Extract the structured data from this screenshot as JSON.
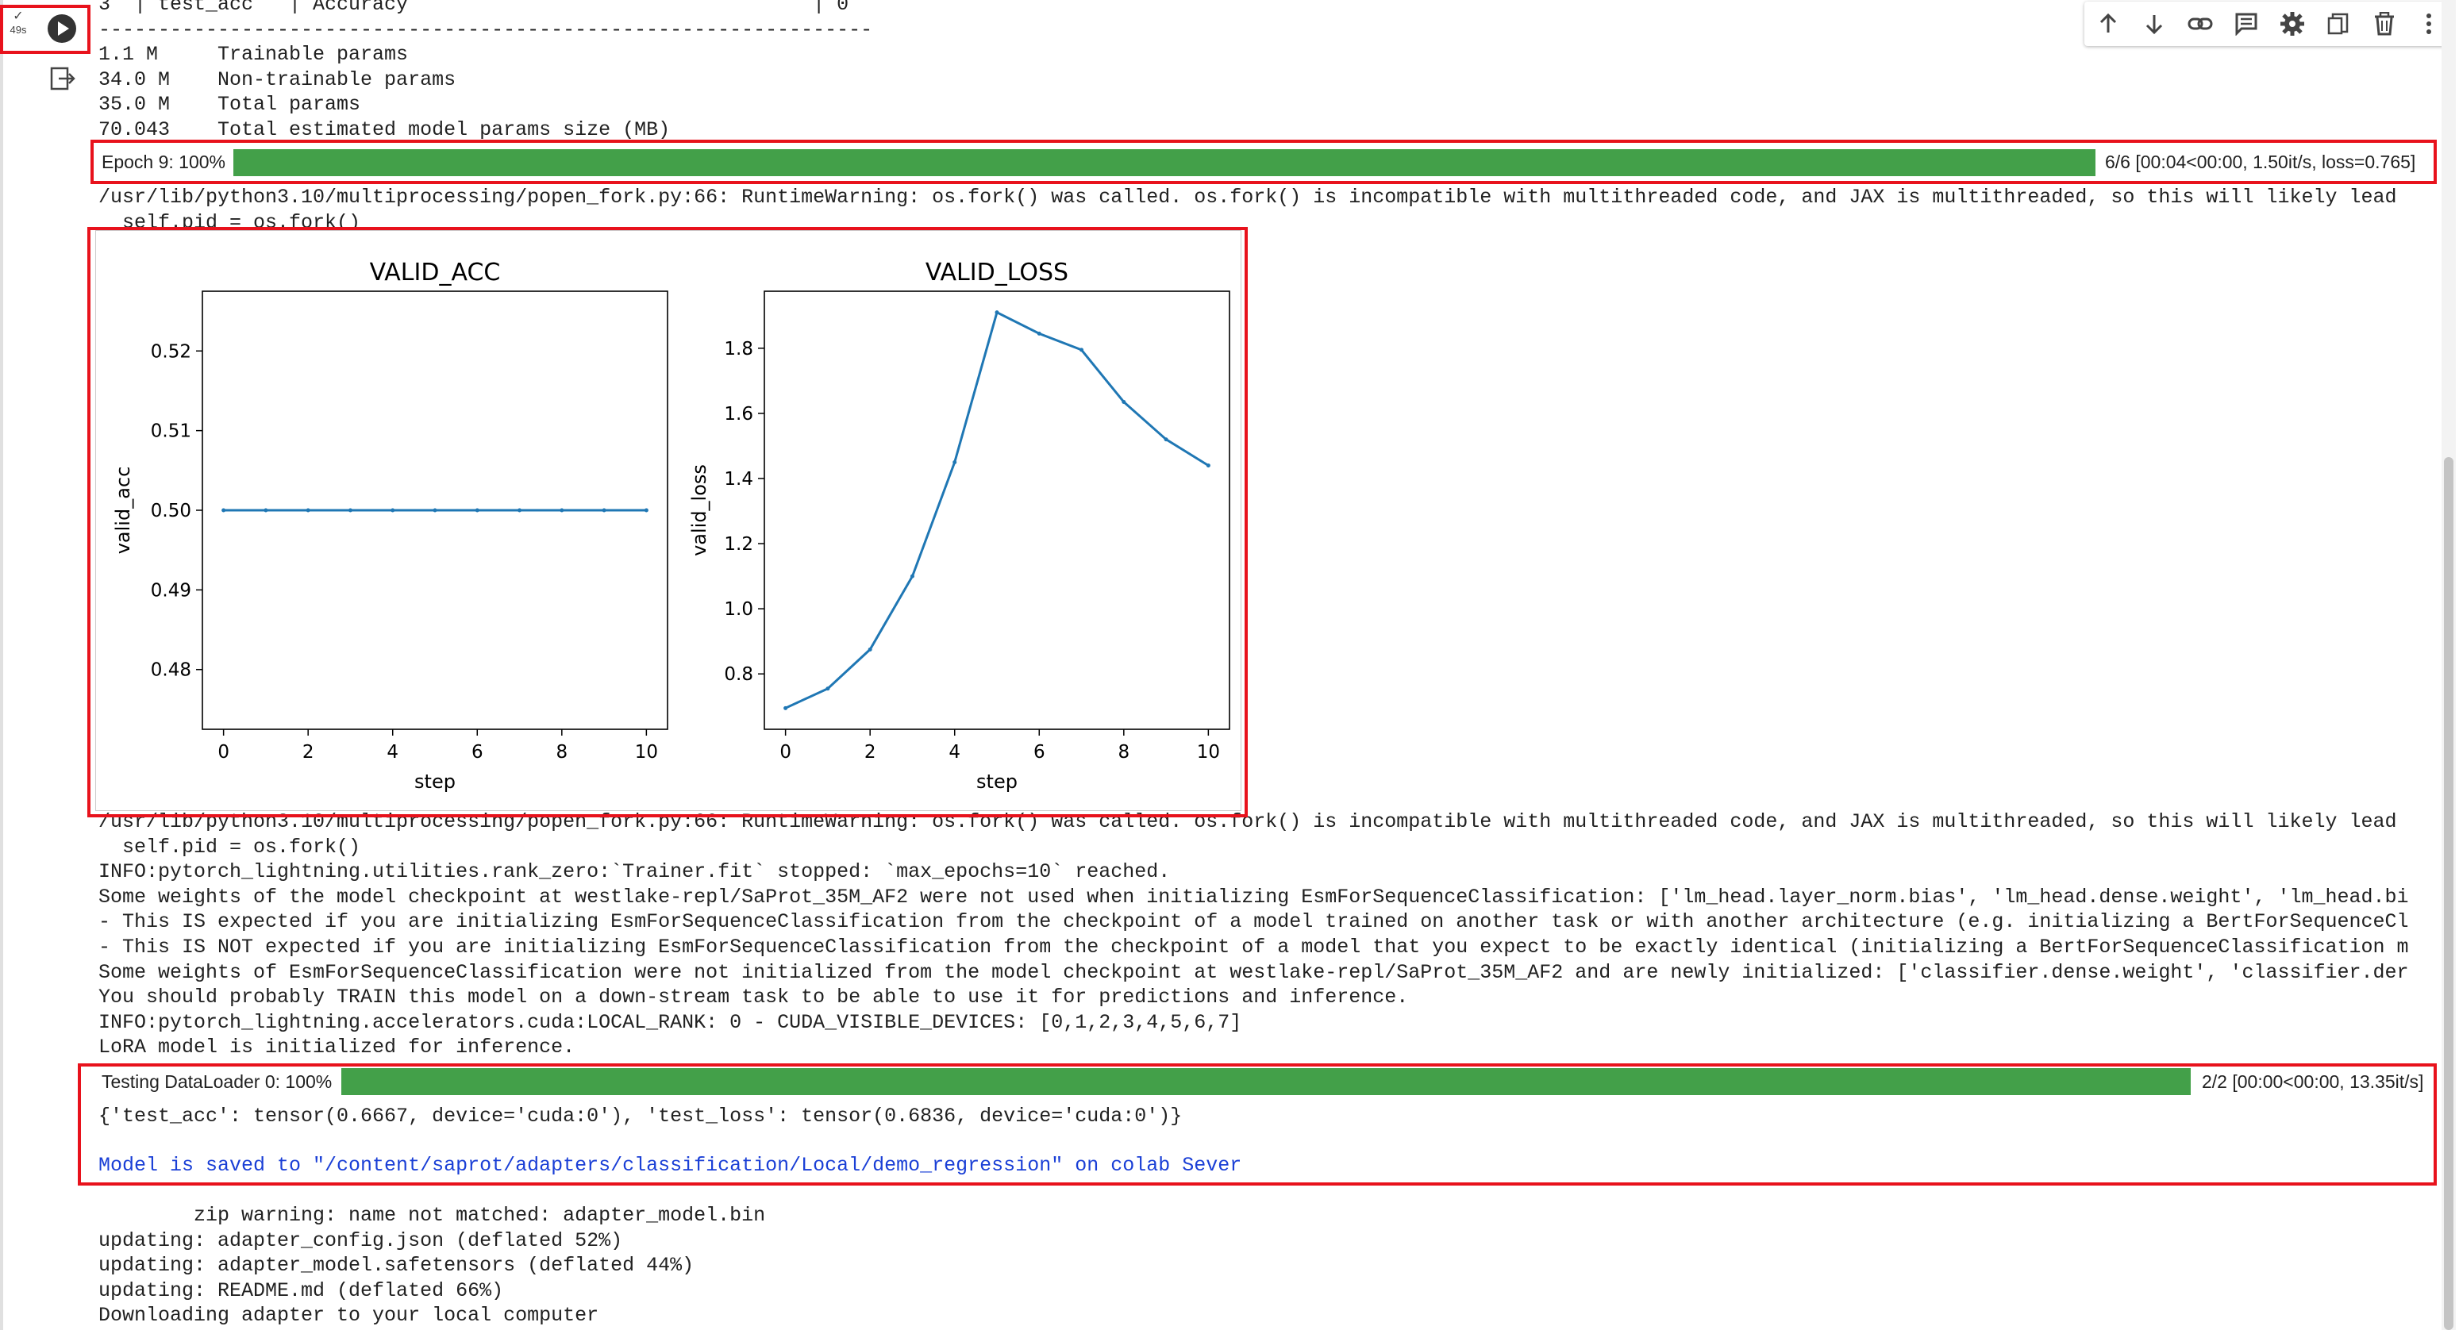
{
  "cell": {
    "exec_time": "49s",
    "check": "✓"
  },
  "toolbar": {
    "icons": [
      "arrow-up-icon",
      "arrow-down-icon",
      "link-icon",
      "comment-icon",
      "gear-icon",
      "mirror-cell-icon",
      "trash-icon",
      "more-vert-icon"
    ]
  },
  "output": {
    "lines_top": [
      "3  | test_acc   | Accuracy                                  | 0",
      "-----------------------------------------------------------------",
      "1.1 M     Trainable params",
      "34.0 M    Non-trainable params",
      "35.0 M    Total params",
      "70.043    Total estimated model params size (MB)"
    ],
    "epoch_bar": {
      "label": "Epoch 9: 100%",
      "stats": "6/6 [00:04<00:00,  1.50it/s, loss=0.765]",
      "progress": 1.0
    },
    "warning1": [
      "/usr/lib/python3.10/multiprocessing/popen_fork.py:66: RuntimeWarning: os.fork() was called. os.fork() is incompatible with multithreaded code, and JAX is multithreaded, so this will likely lead",
      "  self.pid = os.fork()"
    ],
    "lines_mid": [
      "/usr/lib/python3.10/multiprocessing/popen_fork.py:66: RuntimeWarning: os.fork() was called. os.fork() is incompatible with multithreaded code, and JAX is multithreaded, so this will likely lead",
      "  self.pid = os.fork()",
      "INFO:pytorch_lightning.utilities.rank_zero:`Trainer.fit` stopped: `max_epochs=10` reached.",
      "Some weights of the model checkpoint at westlake-repl/SaProt_35M_AF2 were not used when initializing EsmForSequenceClassification: ['lm_head.layer_norm.bias', 'lm_head.dense.weight', 'lm_head.bi",
      "- This IS expected if you are initializing EsmForSequenceClassification from the checkpoint of a model trained on another task or with another architecture (e.g. initializing a BertForSequenceCl",
      "- This IS NOT expected if you are initializing EsmForSequenceClassification from the checkpoint of a model that you expect to be exactly identical (initializing a BertForSequenceClassification m",
      "Some weights of EsmForSequenceClassification were not initialized from the model checkpoint at westlake-repl/SaProt_35M_AF2 and are newly initialized: ['classifier.dense.weight', 'classifier.der",
      "You should probably TRAIN this model on a down-stream task to be able to use it for predictions and inference.",
      "INFO:pytorch_lightning.accelerators.cuda:LOCAL_RANK: 0 - CUDA_VISIBLE_DEVICES: [0,1,2,3,4,5,6,7]",
      "LoRA model is initialized for inference."
    ],
    "test_bar": {
      "label": "Testing DataLoader 0: 100%",
      "stats": "2/2 [00:00<00:00, 13.35it/s]",
      "progress": 1.0
    },
    "test_result": "{'test_acc': tensor(0.6667, device='cuda:0'), 'test_loss': tensor(0.6836, device='cuda:0')}",
    "saved_msg": "Model is saved to \"/content/saprot/adapters/classification/Local/demo_regression\" on colab Sever",
    "lines_bottom": [
      "        zip warning: name not matched: adapter_model.bin",
      "updating: adapter_config.json (deflated 52%)",
      "updating: adapter_model.safetensors (deflated 44%)",
      "updating: README.md (deflated 66%)",
      "Downloading adapter to your local computer"
    ]
  },
  "chart_data": [
    {
      "type": "line",
      "title": "VALID_ACC",
      "xlabel": "step",
      "ylabel": "valid_acc",
      "x": [
        0,
        1,
        2,
        3,
        4,
        5,
        6,
        7,
        8,
        9,
        10
      ],
      "y": [
        0.5,
        0.5,
        0.5,
        0.5,
        0.5,
        0.5,
        0.5,
        0.5,
        0.5,
        0.5,
        0.5
      ],
      "xlim": [
        -0.5,
        10.5
      ],
      "ylim": [
        0.4725,
        0.5275
      ],
      "xticks": [
        0,
        2,
        4,
        6,
        8,
        10
      ],
      "yticks": [
        0.48,
        0.49,
        0.5,
        0.51,
        0.52
      ],
      "ytick_labels": [
        "0.48",
        "0.49",
        "0.50",
        "0.51",
        "0.52"
      ],
      "color": "#1f77b4"
    },
    {
      "type": "line",
      "title": "VALID_LOSS",
      "xlabel": "step",
      "ylabel": "valid_loss",
      "x": [
        0,
        1,
        2,
        3,
        4,
        5,
        6,
        7,
        8,
        9,
        10
      ],
      "y": [
        0.695,
        0.755,
        0.875,
        1.1,
        1.45,
        1.91,
        1.845,
        1.795,
        1.635,
        1.52,
        1.44
      ],
      "xlim": [
        -0.5,
        10.5
      ],
      "ylim": [
        0.63,
        1.975
      ],
      "xticks": [
        0,
        2,
        4,
        6,
        8,
        10
      ],
      "yticks": [
        0.8,
        1.0,
        1.2,
        1.4,
        1.6,
        1.8
      ],
      "ytick_labels": [
        "0.8",
        "1.0",
        "1.2",
        "1.4",
        "1.6",
        "1.8"
      ],
      "color": "#1f77b4"
    }
  ]
}
